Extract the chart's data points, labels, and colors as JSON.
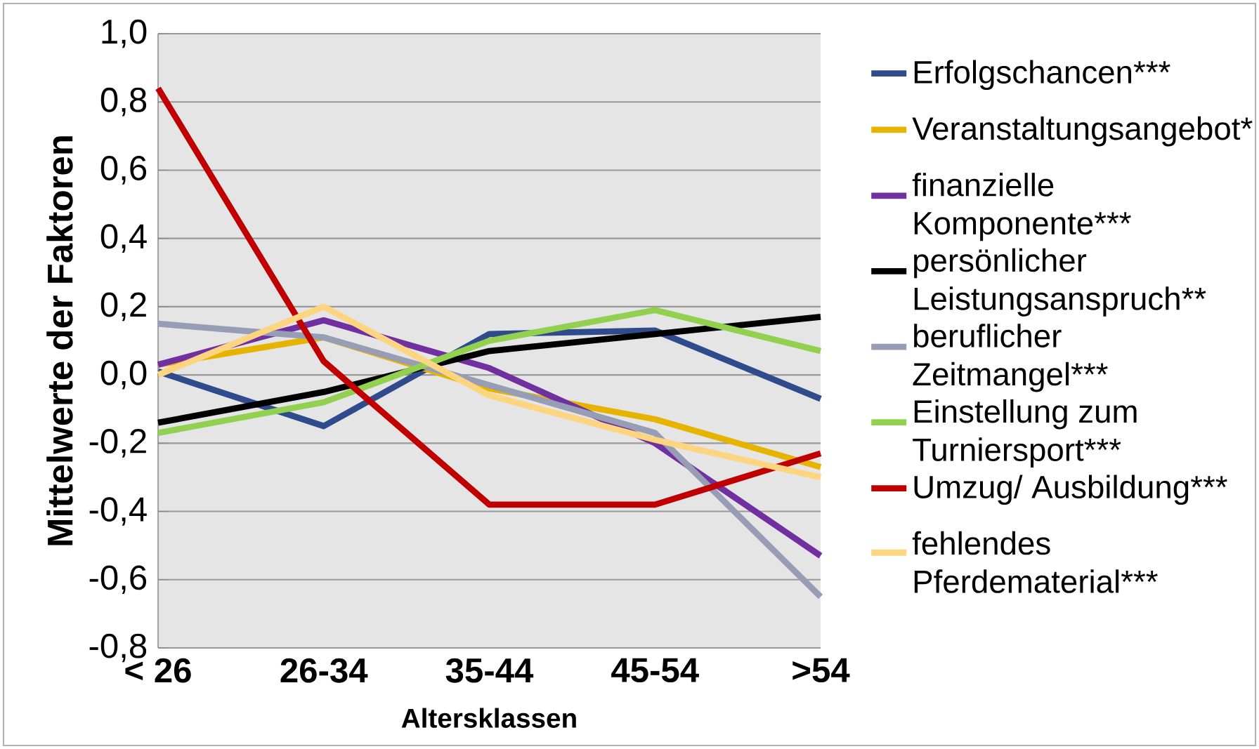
{
  "chart_data": {
    "type": "line",
    "xlabel": "Altersklassen",
    "ylabel": "Mittelwerte der Faktoren",
    "categories": [
      "< 26",
      "26-34",
      "35-44",
      "45-54",
      ">54"
    ],
    "ylim": [
      -0.8,
      1.0
    ],
    "yticks": [
      {
        "value": -0.8,
        "label": "-0,8"
      },
      {
        "value": -0.6,
        "label": "-0,6"
      },
      {
        "value": -0.4,
        "label": "-0,4"
      },
      {
        "value": -0.2,
        "label": "-0,2"
      },
      {
        "value": 0,
        "label": "0,0"
      },
      {
        "value": 0.2,
        "label": "0,2"
      },
      {
        "value": 0.4,
        "label": "0,4"
      },
      {
        "value": 0.6,
        "label": "0,6"
      },
      {
        "value": 0.8,
        "label": "0,8"
      },
      {
        "value": 1.0,
        "label": "1,0"
      }
    ],
    "grid": "y",
    "legend": "right",
    "marker": "none",
    "line_style": "solid",
    "series": [
      {
        "name": "Erfolgschancen***",
        "color": "#2f4b8c",
        "values": [
          0.01,
          -0.15,
          0.12,
          0.13,
          -0.07
        ]
      },
      {
        "name": "Veranstaltungsangebot*",
        "color": "#e6b400",
        "values": [
          0.03,
          0.11,
          -0.04,
          -0.13,
          -0.27
        ]
      },
      {
        "name": "finanzielle Komponente***",
        "color": "#7030a0",
        "values": [
          0.03,
          0.16,
          0.02,
          -0.2,
          -0.53
        ]
      },
      {
        "name": "persönlicher Leistungsanspruch**",
        "color": "#000000",
        "values": [
          -0.14,
          -0.05,
          0.07,
          0.12,
          0.17
        ]
      },
      {
        "name": "beruflicher Zeitmangel***",
        "color": "#969db4",
        "values": [
          0.15,
          0.11,
          -0.03,
          -0.17,
          -0.65
        ]
      },
      {
        "name": "Einstellung zum Turniersport***",
        "color": "#92d050",
        "values": [
          -0.17,
          -0.08,
          0.1,
          0.19,
          0.07
        ]
      },
      {
        "name": "Umzug/ Ausbildung***",
        "color": "#c00000",
        "values": [
          0.84,
          0.04,
          -0.38,
          -0.38,
          -0.23
        ]
      },
      {
        "name": "fehlendes Pferdematerial***",
        "color": "#fdd47f",
        "values": [
          0.0,
          0.2,
          -0.06,
          -0.19,
          -0.3
        ]
      }
    ]
  }
}
